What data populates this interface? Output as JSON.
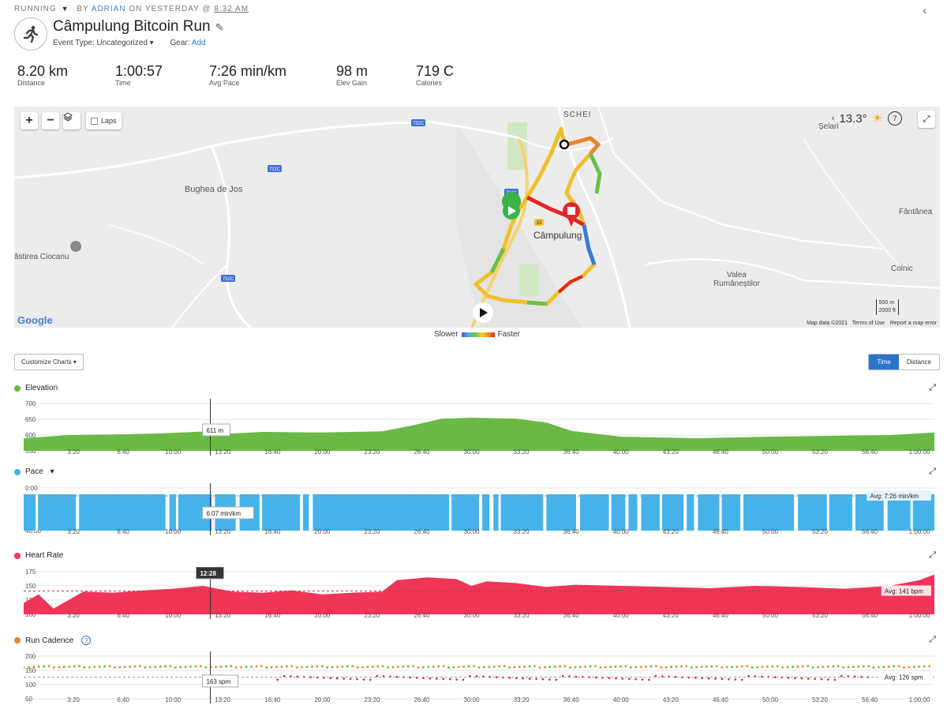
{
  "header": {
    "activity_type": "RUNNING",
    "by_prefix": "BY",
    "author": "ADRIAN",
    "when_prefix": "ON YESTERDAY @",
    "time": "8:32 AM",
    "title": "Câmpulung Bitcoin Run",
    "event_type_label": "Event Type: Uncategorized",
    "gear_label": "Gear:",
    "gear_add": "Add"
  },
  "stats": [
    {
      "value": "8.20 km",
      "label": "Distance"
    },
    {
      "value": "1:00:57",
      "label": "Time"
    },
    {
      "value": "7:26 min/km",
      "label": "Avg Pace"
    },
    {
      "value": "98 m",
      "label": "Elev Gain"
    },
    {
      "value": "719 C",
      "label": "Calories"
    }
  ],
  "map": {
    "laps_label": "Laps",
    "temperature": "13.3°",
    "wind": "7",
    "places": [
      {
        "name": "SCHEI"
      },
      {
        "name": "Bughea de Jos"
      },
      {
        "name": "Câmpulung"
      },
      {
        "name": "Valea\nRumâneștilor"
      },
      {
        "name": "Colnic"
      },
      {
        "name": "Fântânea"
      },
      {
        "name": "Șelari"
      },
      {
        "name": "ăstirea Ciocanu"
      }
    ],
    "road_labels": [
      "732C",
      "732C",
      "732C",
      "732C",
      "33"
    ],
    "google": "Google",
    "map_data": "Map data ©2021",
    "terms": "Terms of Use",
    "report": "Report a map error",
    "scale_m": "500 m",
    "scale_ft": "2000 ft"
  },
  "speed_legend": {
    "slower": "Slower",
    "faster": "Faster"
  },
  "controls": {
    "customize": "Customize Charts",
    "time": "Time",
    "distance": "Distance"
  },
  "colors": {
    "elevation": "#6ab946",
    "pace": "#45b3ea",
    "heart": "#f03559",
    "cadence_orange": "#e8862c",
    "cadence_green": "#5ab940",
    "cadence_red": "#e02828"
  },
  "x_ticks": [
    "3:20",
    "6:40",
    "10:00",
    "13:20",
    "16:40",
    "20:00",
    "23:20",
    "26:40",
    "30:00",
    "33:20",
    "36:40",
    "40:00",
    "43:20",
    "46:40",
    "50:00",
    "53:20",
    "56:40",
    "1:00:00"
  ],
  "charts": {
    "elevation": {
      "title": "Elevation",
      "y_ticks": [
        "700",
        "650",
        "600",
        "550"
      ],
      "tooltip": "611 m"
    },
    "pace": {
      "title": "Pace",
      "y_ticks": [
        "0:00",
        "20:00",
        "40:00"
      ],
      "tooltip": "6:07 min/km",
      "avg": "Avg: 7:26 min/km"
    },
    "heart": {
      "title": "Heart Rate",
      "y_ticks": [
        "175",
        "150",
        "125",
        "100"
      ],
      "tooltip": "12:28",
      "avg": "Avg: 141 bpm"
    },
    "cadence": {
      "title": "Run Cadence",
      "help": "?",
      "y_ticks": [
        "200",
        "150",
        "100",
        "50"
      ],
      "tooltip": "163 spm",
      "avg": "Avg: 126 spm"
    }
  },
  "chart_data": [
    {
      "type": "area",
      "title": "Elevation",
      "xlabel": "",
      "ylabel": "",
      "ylim": [
        550,
        700
      ],
      "x_unit": "min",
      "x": [
        0,
        3,
        6,
        9,
        12,
        14,
        16,
        20,
        24,
        26,
        28,
        30,
        33,
        35,
        36.7,
        40,
        45,
        50,
        55,
        58,
        61
      ],
      "y": [
        590,
        600,
        602,
        605,
        611,
        605,
        610,
        608,
        612,
        630,
        652,
        655,
        652,
        640,
        613,
        595,
        590,
        595,
        598,
        600,
        608
      ]
    },
    {
      "type": "area",
      "title": "Pace",
      "xlabel": "",
      "ylabel": "",
      "ylim": [
        0,
        40
      ],
      "x_unit": "min",
      "avg": "7:26"
    },
    {
      "type": "area",
      "title": "Heart Rate",
      "xlabel": "",
      "ylabel": "",
      "ylim": [
        100,
        175
      ],
      "x_unit": "min",
      "x": [
        0,
        1,
        2,
        4,
        6,
        8,
        10,
        12,
        14,
        16,
        18,
        20,
        22,
        24,
        25,
        27,
        29,
        30,
        31,
        33,
        35,
        37,
        40,
        43,
        46,
        49,
        52,
        55,
        58,
        60,
        61
      ],
      "y": [
        120,
        135,
        110,
        140,
        138,
        142,
        145,
        150,
        140,
        138,
        142,
        135,
        138,
        140,
        160,
        165,
        162,
        150,
        158,
        155,
        148,
        152,
        150,
        148,
        146,
        150,
        148,
        145,
        150,
        160,
        170
      ]
    },
    {
      "type": "scatter",
      "title": "Run Cadence",
      "xlabel": "",
      "ylabel": "",
      "ylim": [
        50,
        200
      ],
      "x_unit": "min",
      "avg": 126
    }
  ]
}
